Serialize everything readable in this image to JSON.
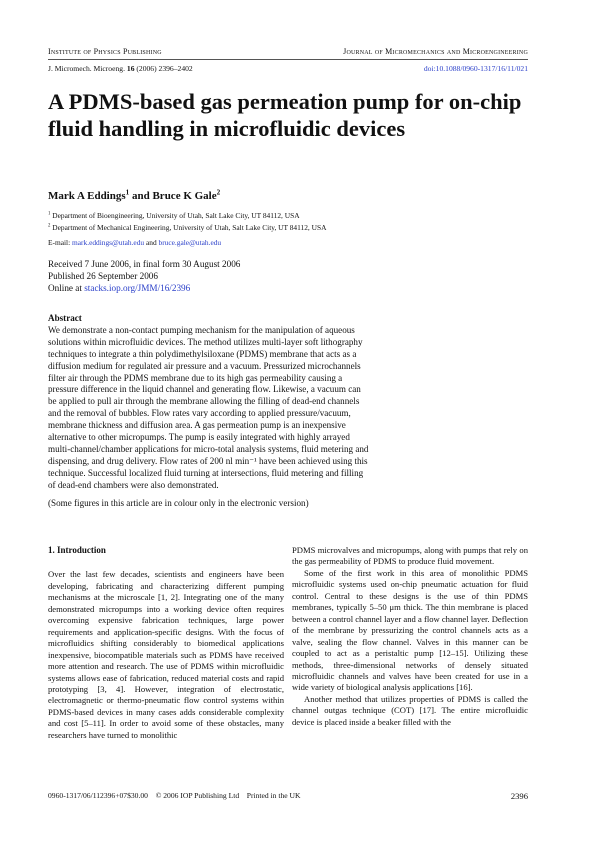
{
  "header": {
    "publisher": "Institute of Physics Publishing",
    "journal": "Journal of Micromechanics and Microengineering",
    "citation": {
      "journal": "J. Micromech. Microeng.",
      "volume": "16",
      "rest": "(2006) 2396–2402"
    },
    "doi": "doi:10.1088/0960-1317/16/11/021"
  },
  "title": "A PDMS-based gas permeation pump for on-chip fluid handling in microfluidic devices",
  "authors": [
    {
      "name": "Mark A Eddings",
      "affil": "1"
    },
    {
      "name": "Bruce K Gale",
      "affil": "2"
    }
  ],
  "authors_joiner": "and",
  "affiliations": [
    {
      "number": "1",
      "text": "Department of Bioengineering, University of Utah, Salt Lake City, UT 84112, USA"
    },
    {
      "number": "2",
      "text": "Department of Mechanical Engineering, University of Utah, Salt Lake City, UT 84112, USA"
    }
  ],
  "email": {
    "label": "E-mail:",
    "addresses": [
      "mark.eddings@utah.edu",
      "bruce.gale@utah.edu"
    ],
    "joiner": "and"
  },
  "history": {
    "received": "Received 7 June 2006, in final form 30 August 2006",
    "published": "Published 26 September 2006",
    "online_label": "Online at",
    "online_url": "stacks.iop.org/JMM/16/2396"
  },
  "abstract": {
    "heading": "Abstract",
    "text": "We demonstrate a non-contact pumping mechanism for the manipulation of aqueous solutions within microfluidic devices. The method utilizes multi-layer soft lithography techniques to integrate a thin polydimethylsiloxane (PDMS) membrane that acts as a diffusion medium for regulated air pressure and a vacuum. Pressurized microchannels filter air through the PDMS membrane due to its high gas permeability causing a pressure difference in the liquid channel and generating flow. Likewise, a vacuum can be applied to pull air through the membrane allowing the filling of dead-end channels and the removal of bubbles. Flow rates vary according to applied pressure/vacuum, membrane thickness and diffusion area. A gas permeation pump is an inexpensive alternative to other micropumps. The pump is easily integrated with highly arrayed multi-channel/chamber applications for micro-total analysis systems, fluid metering and dispensing, and drug delivery. Flow rates of 200 nl min⁻¹ have been achieved using this technique. Successful localized fluid turning at intersections, fluid metering and filling of dead-end chambers were also demonstrated.",
    "note": "(Some figures in this article are in colour only in the electronic version)"
  },
  "body": {
    "section_heading": "1. Introduction",
    "left_column": [
      "Over the last few decades, scientists and engineers have been developing, fabricating and characterizing different pumping mechanisms at the microscale [1, 2]. Integrating one of the many demonstrated micropumps into a working device often requires overcoming expensive fabrication techniques, large power requirements and application-specific designs. With the focus of microfluidics shifting considerably to biomedical applications inexpensive, biocompatible materials such as PDMS have received more attention and research. The use of PDMS within microfluidic systems allows ease of fabrication, reduced material costs and rapid prototyping [3, 4]. However, integration of electrostatic, electromagnetic or thermo-pneumatic flow control systems within PDMS-based devices in many cases adds considerable complexity and cost [5–11]. In order to avoid some of these obstacles, many researchers have turned to monolithic"
    ],
    "right_column": [
      "PDMS microvalves and micropumps, along with pumps that rely on the gas permeability of PDMS to produce fluid movement.",
      "Some of the first work in this area of monolithic PDMS microfluidic systems used on-chip pneumatic actuation for fluid control. Central to these designs is the use of thin PDMS membranes, typically 5–50 μm thick. The thin membrane is placed between a control channel layer and a flow channel layer. Deflection of the membrane by pressurizing the control channels acts as a valve, sealing the flow channel. Valves in this manner can be coupled to act as a peristaltic pump [12–15]. Utilizing these methods, three-dimensional networks of densely situated microfluidic channels and valves have been created for use in a wide variety of biological analysis applications [16].",
      "Another method that utilizes properties of PDMS is called the channel outgas technique (COT) [17]. The entire microfluidic device is placed inside a beaker filled with the"
    ]
  },
  "footer": {
    "issn": "0960-1317/06/112396+07$30.00",
    "copyright": "© 2006 IOP Publishing Ltd",
    "printed": "Printed in the UK",
    "page": "2396"
  }
}
